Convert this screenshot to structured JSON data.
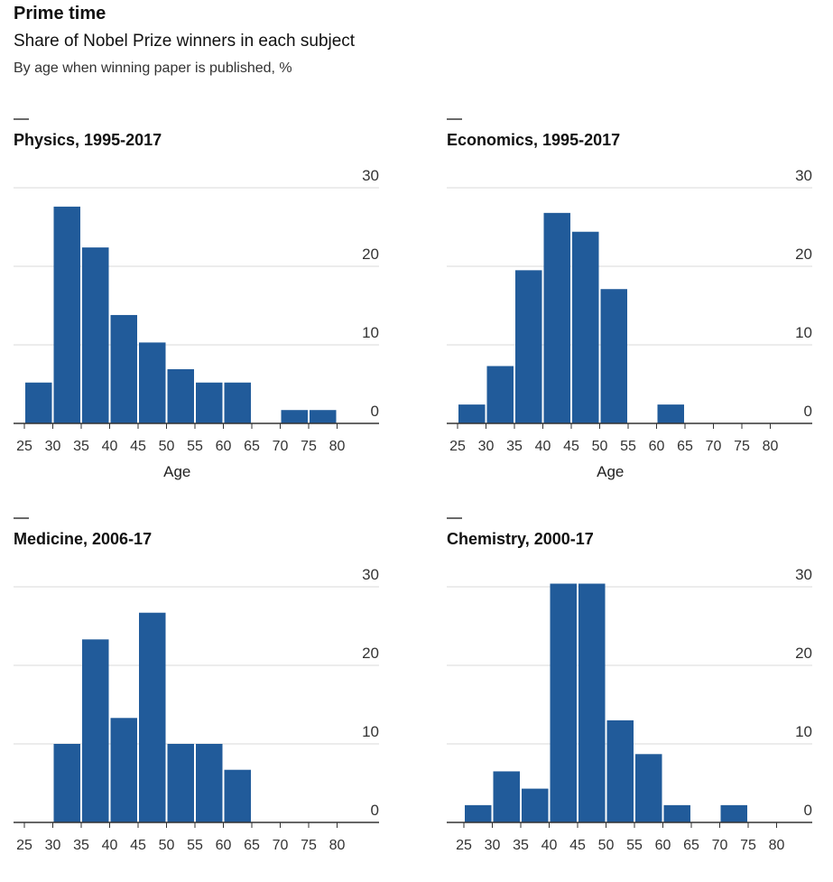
{
  "title": "Prime time",
  "subtitle": "Share of Nobel Prize winners in each subject",
  "note": "By age when winning paper is published, %",
  "bar_color": "#215b9a",
  "chart_data": [
    {
      "type": "bar",
      "title": "Physics, 1995-2017",
      "xlabel": "Age",
      "ylabel": "",
      "bin_edges": [
        25,
        30,
        35,
        40,
        45,
        50,
        55,
        60,
        65,
        70,
        75,
        80
      ],
      "values": [
        5.2,
        27.6,
        22.4,
        13.8,
        10.3,
        6.9,
        5.2,
        5.2,
        0,
        1.7,
        1.7
      ],
      "ylim": [
        0,
        30
      ],
      "yticks": [
        0,
        10,
        20,
        30
      ],
      "grid": true
    },
    {
      "type": "bar",
      "title": "Economics, 1995-2017",
      "xlabel": "Age",
      "ylabel": "",
      "bin_edges": [
        25,
        30,
        35,
        40,
        45,
        50,
        55,
        60,
        65,
        70,
        75,
        80
      ],
      "values": [
        2.4,
        7.3,
        19.5,
        26.8,
        24.4,
        17.1,
        0,
        2.4,
        0,
        0,
        0
      ],
      "ylim": [
        0,
        30
      ],
      "yticks": [
        0,
        10,
        20,
        30
      ],
      "grid": true
    },
    {
      "type": "bar",
      "title": "Medicine, 2006-17",
      "xlabel": "",
      "ylabel": "",
      "bin_edges": [
        25,
        30,
        35,
        40,
        45,
        50,
        55,
        60,
        65,
        70,
        75,
        80
      ],
      "values": [
        0,
        10,
        23.3,
        13.3,
        26.7,
        10,
        10,
        6.7,
        0,
        0,
        0
      ],
      "ylim": [
        0,
        30
      ],
      "yticks": [
        0,
        10,
        20,
        30
      ],
      "grid": true
    },
    {
      "type": "bar",
      "title": "Chemistry, 2000-17",
      "xlabel": "",
      "ylabel": "",
      "bin_edges": [
        25,
        30,
        35,
        40,
        45,
        50,
        55,
        60,
        65,
        70,
        75,
        80
      ],
      "values": [
        2.2,
        6.5,
        4.3,
        30.4,
        30.4,
        13,
        8.7,
        2.2,
        0,
        2.2,
        0
      ],
      "ylim": [
        0,
        30
      ],
      "yticks": [
        0,
        10,
        20,
        30
      ],
      "grid": true
    }
  ]
}
